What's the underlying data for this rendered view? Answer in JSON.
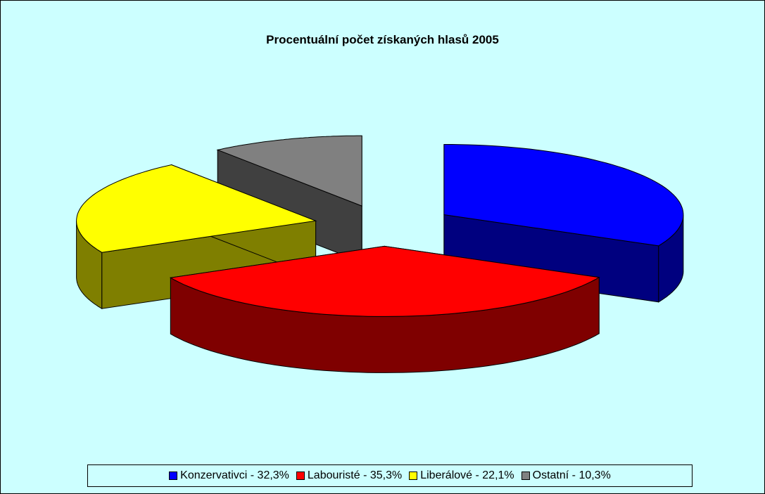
{
  "chart_data": {
    "type": "pie3d",
    "title": "Procentuální počet získaných hlasů 2005",
    "categories": [
      "Konzervativci - 32,3%",
      "Labouristé - 35,3%",
      "Liberálové - 22,1%",
      "Ostatní - 10,3%"
    ],
    "values": [
      32.3,
      35.3,
      22.1,
      10.3
    ],
    "colors": [
      "#0000ff",
      "#ff0000",
      "#ffff00",
      "#808080"
    ],
    "legend": "bottom"
  }
}
